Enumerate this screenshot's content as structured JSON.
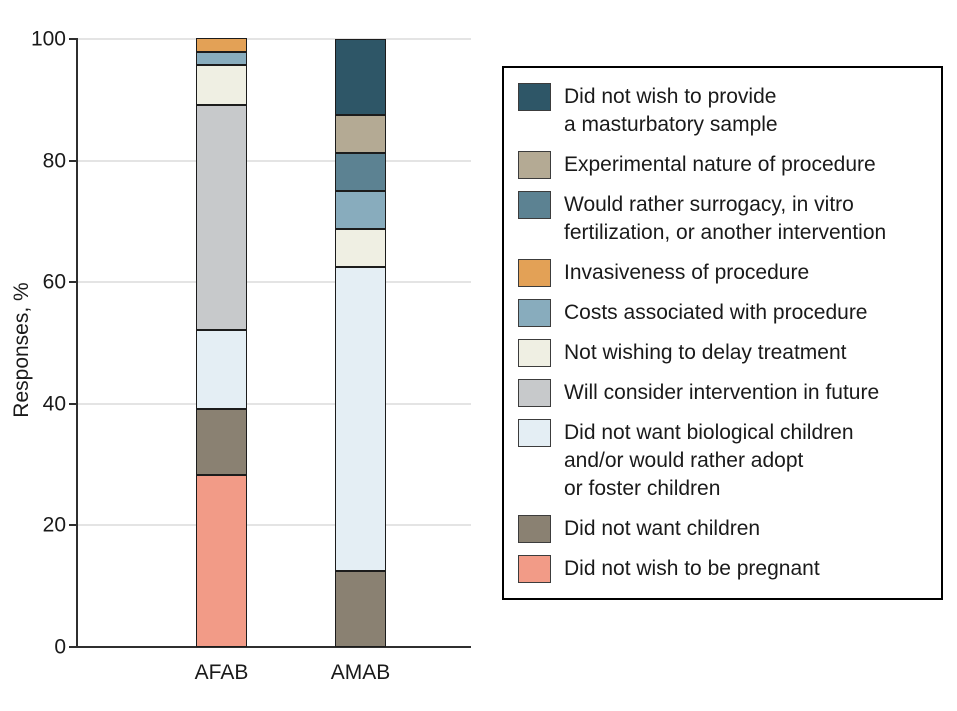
{
  "figure": {
    "background": "#ffffff",
    "axis_color": "#2f2f2f",
    "gridline_color": "#e4e4e4",
    "segment_edge_color": "#1c1c1c"
  },
  "chart_data": {
    "type": "bar",
    "stacked": true,
    "title": "",
    "xlabel": "",
    "ylabel": "Responses, %",
    "ylim": [
      0,
      100
    ],
    "yticks": [
      0,
      20,
      40,
      60,
      80,
      100
    ],
    "categories": [
      "AFAB",
      "AMAB"
    ],
    "grid": "horizontal",
    "legend_position": "right",
    "stack_order_note": "legend top entry is the top of each stack; series values are [AFAB, AMAB] in percent",
    "series": [
      {
        "name": "Did not wish to provide a masturbatory sample",
        "label": "Did not wish to provide\na masturbatory sample",
        "color": "#2E5667",
        "values": [
          0,
          12.5
        ]
      },
      {
        "name": "Experimental nature of procedure",
        "label": "Experimental nature of procedure",
        "color": "#B4AA94",
        "values": [
          0,
          6.25
        ]
      },
      {
        "name": "Would rather surrogacy, in vitro fertilization, or another intervention",
        "label": "Would rather surrogacy, in vitro\nfertilization, or another intervention",
        "color": "#5C8292",
        "values": [
          0,
          6.25
        ]
      },
      {
        "name": "Invasiveness of procedure",
        "label": "Invasiveness of procedure",
        "color": "#E3A156",
        "values": [
          2.2,
          0
        ]
      },
      {
        "name": "Costs associated with procedure",
        "label": "Costs associated with procedure",
        "color": "#88ACBD",
        "values": [
          2.2,
          6.25
        ]
      },
      {
        "name": "Not wishing to delay treatment",
        "label": "Not wishing to delay treatment",
        "color": "#EFEFE3",
        "values": [
          6.5,
          6.25
        ]
      },
      {
        "name": "Will consider intervention in future",
        "label": "Will consider intervention in future",
        "color": "#C7C9CB",
        "values": [
          37.0,
          0
        ]
      },
      {
        "name": "Did not want biological children and/or would rather adopt or foster children",
        "label": "Did not want biological children\nand/or would rather adopt\nor foster children",
        "color": "#E4EEF4",
        "values": [
          13.0,
          50.0
        ]
      },
      {
        "name": "Did not want children",
        "label": "Did not want children",
        "color": "#8A8172",
        "values": [
          10.9,
          12.5
        ]
      },
      {
        "name": "Did not wish to be pregnant",
        "label": "Did not wish to be pregnant",
        "color": "#F29B87",
        "values": [
          28.3,
          0
        ]
      }
    ]
  }
}
